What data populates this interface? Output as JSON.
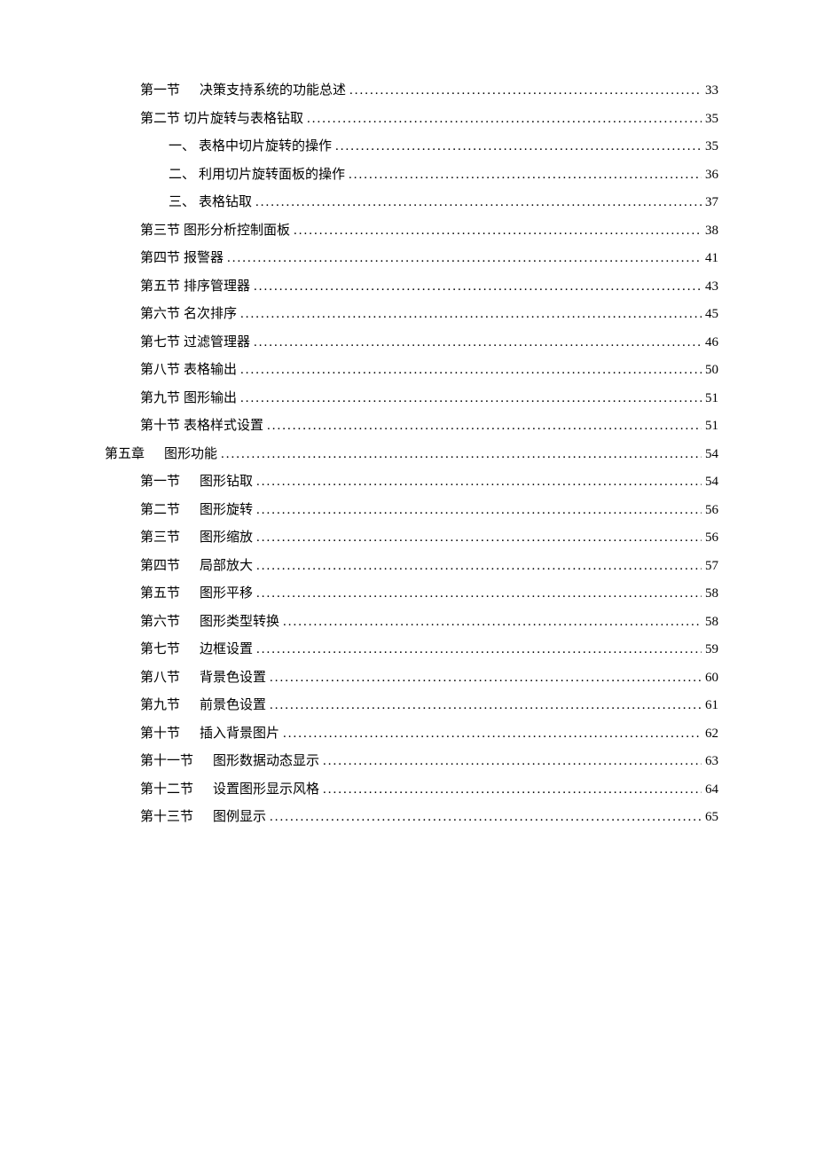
{
  "toc": {
    "entries": [
      {
        "indent": 1,
        "prefix": "第一节",
        "gap": true,
        "title": "决策支持系统的功能总述",
        "page": "33"
      },
      {
        "indent": 1,
        "prefix": "第二节",
        "gap": false,
        "title": "切片旋转与表格钻取",
        "page": "35"
      },
      {
        "indent": 2,
        "prefix": "一、",
        "gap": false,
        "title": "表格中切片旋转的操作",
        "page": "35"
      },
      {
        "indent": 2,
        "prefix": "二、",
        "gap": false,
        "title": "利用切片旋转面板的操作",
        "page": "36"
      },
      {
        "indent": 2,
        "prefix": "三、",
        "gap": false,
        "title": "表格钻取",
        "page": "37"
      },
      {
        "indent": 1,
        "prefix": "第三节",
        "gap": false,
        "title": "图形分析控制面板",
        "page": "38"
      },
      {
        "indent": 1,
        "prefix": "第四节",
        "gap": false,
        "title": "报警器",
        "page": "41"
      },
      {
        "indent": 1,
        "prefix": "第五节",
        "gap": false,
        "title": "排序管理器",
        "page": "43"
      },
      {
        "indent": 1,
        "prefix": "第六节",
        "gap": false,
        "title": "名次排序",
        "page": "45"
      },
      {
        "indent": 1,
        "prefix": "第七节",
        "gap": false,
        "title": "过滤管理器",
        "page": "46"
      },
      {
        "indent": 1,
        "prefix": "第八节",
        "gap": false,
        "title": "表格输出",
        "page": "50"
      },
      {
        "indent": 1,
        "prefix": "第九节",
        "gap": false,
        "title": "图形输出",
        "page": "51"
      },
      {
        "indent": 1,
        "prefix": "第十节",
        "gap": false,
        "title": "表格样式设置",
        "page": "51"
      },
      {
        "indent": 0,
        "prefix": "第五章",
        "gap": true,
        "title": "图形功能",
        "page": "54"
      },
      {
        "indent": 1,
        "prefix": "第一节",
        "gap": true,
        "title": "图形钻取",
        "page": "54"
      },
      {
        "indent": 1,
        "prefix": "第二节",
        "gap": true,
        "title": "图形旋转",
        "page": "56"
      },
      {
        "indent": 1,
        "prefix": "第三节",
        "gap": true,
        "title": "图形缩放",
        "page": "56"
      },
      {
        "indent": 1,
        "prefix": "第四节",
        "gap": true,
        "title": "局部放大",
        "page": "57"
      },
      {
        "indent": 1,
        "prefix": "第五节",
        "gap": true,
        "title": "图形平移",
        "page": "58"
      },
      {
        "indent": 1,
        "prefix": "第六节",
        "gap": true,
        "title": "图形类型转换",
        "page": "58"
      },
      {
        "indent": 1,
        "prefix": "第七节",
        "gap": true,
        "title": "边框设置",
        "page": "59"
      },
      {
        "indent": 1,
        "prefix": "第八节",
        "gap": true,
        "title": "背景色设置",
        "page": "60"
      },
      {
        "indent": 1,
        "prefix": "第九节",
        "gap": true,
        "title": "前景色设置",
        "page": "61"
      },
      {
        "indent": 1,
        "prefix": "第十节",
        "gap": true,
        "title": "插入背景图片",
        "page": "62"
      },
      {
        "indent": 1,
        "prefix": "第十一节",
        "gap": true,
        "title": "图形数据动态显示",
        "page": "63"
      },
      {
        "indent": 1,
        "prefix": "第十二节",
        "gap": true,
        "title": "设置图形显示风格",
        "page": "64"
      },
      {
        "indent": 1,
        "prefix": "第十三节",
        "gap": true,
        "title": "图例显示",
        "page": "65"
      }
    ]
  }
}
